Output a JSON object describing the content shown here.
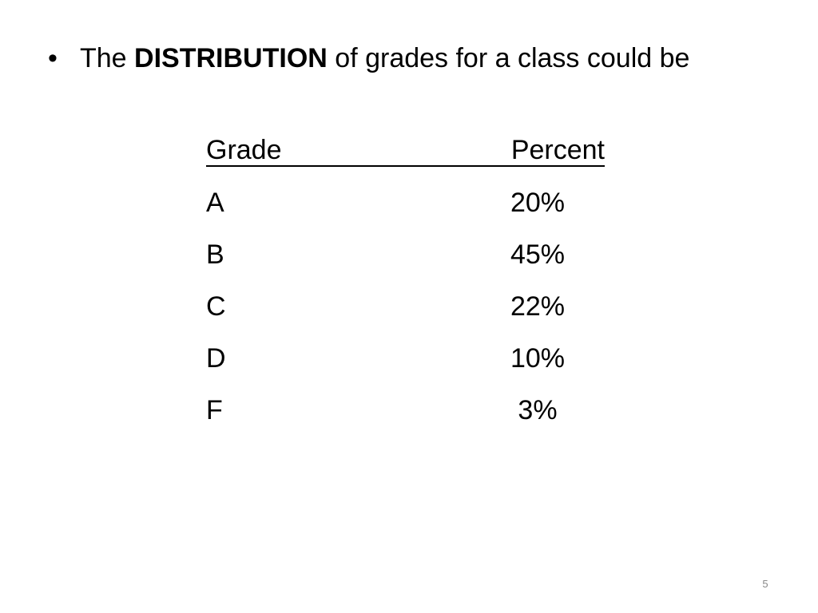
{
  "bullet": {
    "before": "The",
    "bold": "DISTRIBUTION",
    "after": "of grades for a class could be"
  },
  "table": {
    "header": [
      "Grade",
      "Percent"
    ],
    "rows": [
      [
        "A",
        "20%"
      ],
      [
        "B",
        "45%"
      ],
      [
        "C",
        "22%"
      ],
      [
        "D",
        "10%"
      ],
      [
        "F",
        "3%"
      ]
    ]
  },
  "page_number": 5
}
